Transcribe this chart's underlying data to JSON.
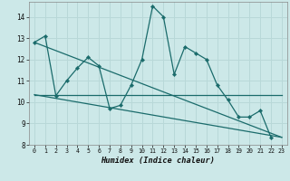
{
  "title": "",
  "xlabel": "Humidex (Indice chaleur)",
  "background_color": "#cce8e8",
  "grid_color": "#b8d8d8",
  "line_color": "#1a6b6b",
  "xlim": [
    -0.5,
    23.5
  ],
  "ylim": [
    8.0,
    14.7
  ],
  "yticks": [
    8,
    9,
    10,
    11,
    12,
    13,
    14
  ],
  "xticks": [
    0,
    1,
    2,
    3,
    4,
    5,
    6,
    7,
    8,
    9,
    10,
    11,
    12,
    13,
    14,
    15,
    16,
    17,
    18,
    19,
    20,
    21,
    22,
    23
  ],
  "series1_x": [
    0,
    1,
    2,
    3,
    4,
    5,
    6,
    7,
    8,
    9,
    10,
    11,
    12,
    13,
    14,
    15,
    16,
    17,
    18,
    19,
    20,
    21,
    22
  ],
  "series1_y": [
    12.8,
    13.1,
    10.3,
    11.0,
    11.6,
    12.1,
    11.7,
    9.7,
    9.85,
    10.8,
    12.0,
    14.5,
    14.0,
    11.3,
    12.6,
    12.3,
    12.0,
    10.8,
    10.1,
    9.3,
    9.3,
    9.6,
    8.35
  ],
  "series2_x": [
    0,
    23
  ],
  "series2_y": [
    10.35,
    10.35
  ],
  "series3_x": [
    0,
    23
  ],
  "series3_y": [
    10.35,
    8.35
  ],
  "series4_x": [
    0,
    23
  ],
  "series4_y": [
    12.8,
    8.35
  ]
}
